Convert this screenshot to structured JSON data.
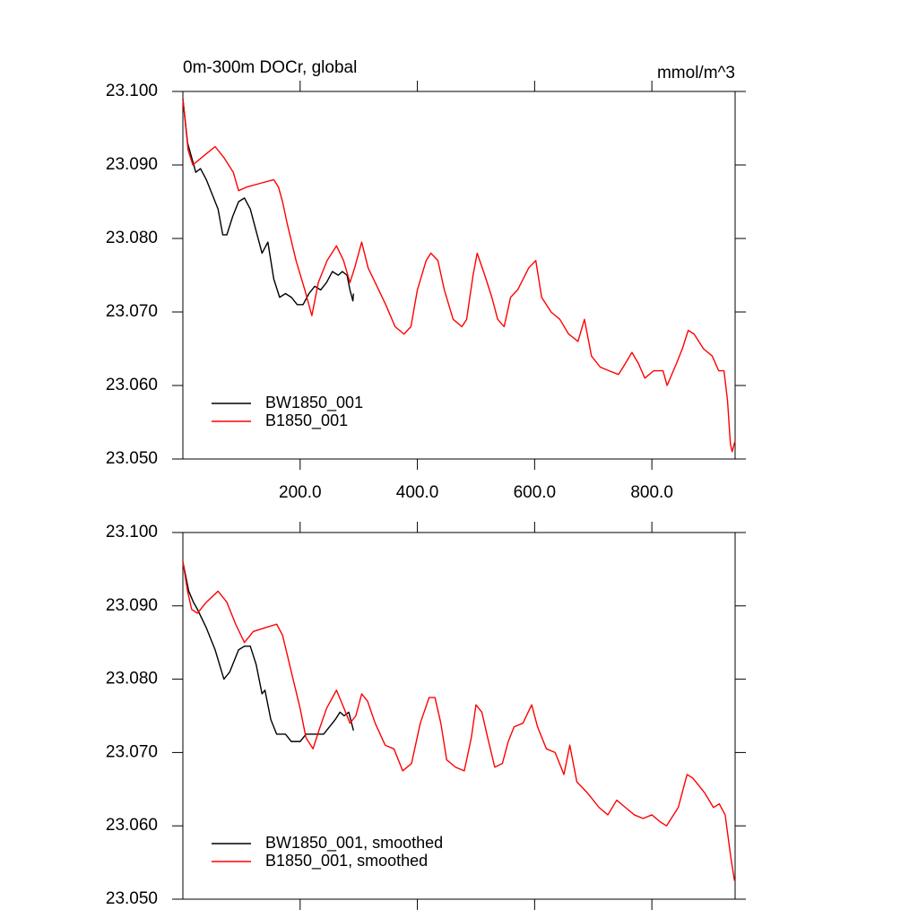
{
  "chart_data": [
    {
      "type": "line",
      "title": "0m-300m DOCr, global",
      "units": "mmol/m^3",
      "xlim": [
        0,
        942
      ],
      "ylim": [
        23.05,
        23.1
      ],
      "xticks": [
        {
          "value": 200,
          "label": "200.0"
        },
        {
          "value": 400,
          "label": "400.0"
        },
        {
          "value": 600,
          "label": "600.0"
        },
        {
          "value": 800,
          "label": "800.0"
        }
      ],
      "yticks": [
        {
          "value": 23.05,
          "label": "23.050"
        },
        {
          "value": 23.06,
          "label": "23.060"
        },
        {
          "value": 23.07,
          "label": "23.070"
        },
        {
          "value": 23.08,
          "label": "23.080"
        },
        {
          "value": 23.09,
          "label": "23.090"
        },
        {
          "value": 23.1,
          "label": "23.100"
        }
      ],
      "legend": "lower left",
      "series": [
        {
          "name": "BW1850_001",
          "color": "#000000",
          "x": [
            0,
            8,
            15,
            22,
            30,
            40,
            50,
            60,
            68,
            75,
            85,
            95,
            105,
            115,
            125,
            135,
            145,
            155,
            165,
            175,
            185,
            195,
            205,
            215,
            225,
            235,
            245,
            255,
            265,
            272,
            280,
            285,
            290,
            291
          ],
          "values": [
            23.099,
            23.093,
            23.091,
            23.089,
            23.0895,
            23.088,
            23.086,
            23.084,
            23.0805,
            23.0805,
            23.083,
            23.085,
            23.0855,
            23.084,
            23.081,
            23.078,
            23.0795,
            23.0745,
            23.072,
            23.0725,
            23.072,
            23.071,
            23.071,
            23.0725,
            23.0735,
            23.073,
            23.074,
            23.0755,
            23.075,
            23.0755,
            23.075,
            23.073,
            23.0715,
            23.0725
          ]
        },
        {
          "name": "B1850_001",
          "color": "#ff0000",
          "x": [
            0,
            9,
            17,
            32,
            55,
            70,
            86,
            95,
            109,
            132,
            155,
            163,
            170,
            178,
            193,
            208,
            220,
            231,
            246,
            262,
            274,
            285,
            293,
            305,
            316,
            328,
            346,
            362,
            377,
            389,
            400,
            415,
            423,
            435,
            446,
            461,
            476,
            484,
            495,
            502,
            515,
            527,
            537,
            548,
            559,
            571,
            590,
            602,
            612,
            628,
            643,
            658,
            674,
            685,
            697,
            712,
            727,
            743,
            751,
            766,
            777,
            788,
            803,
            819,
            826,
            842,
            852,
            862,
            872,
            888,
            903,
            914,
            923,
            929,
            934,
            937,
            942
          ],
          "values": [
            23.099,
            23.092,
            23.09,
            23.091,
            23.0925,
            23.091,
            23.089,
            23.0865,
            23.087,
            23.0875,
            23.088,
            23.087,
            23.085,
            23.082,
            23.077,
            23.073,
            23.0695,
            23.074,
            23.077,
            23.079,
            23.077,
            23.074,
            23.076,
            23.0795,
            23.076,
            23.074,
            23.071,
            23.068,
            23.067,
            23.068,
            23.073,
            23.077,
            23.078,
            23.077,
            23.073,
            23.069,
            23.068,
            23.069,
            23.075,
            23.078,
            23.075,
            23.072,
            23.069,
            23.068,
            23.072,
            23.073,
            23.076,
            23.077,
            23.072,
            23.07,
            23.069,
            23.067,
            23.066,
            23.069,
            23.064,
            23.0625,
            23.062,
            23.0615,
            23.0625,
            23.0645,
            23.063,
            23.061,
            23.062,
            23.062,
            23.06,
            23.063,
            23.065,
            23.0675,
            23.067,
            23.065,
            23.064,
            23.062,
            23.062,
            23.058,
            23.052,
            23.051,
            23.0525
          ]
        }
      ]
    },
    {
      "type": "line",
      "xlim": [
        0,
        942
      ],
      "ylim": [
        23.05,
        23.1
      ],
      "xticks": [
        200,
        400,
        600,
        800
      ],
      "yticks": [
        {
          "value": 23.05,
          "label": "23.050"
        },
        {
          "value": 23.06,
          "label": "23.060"
        },
        {
          "value": 23.07,
          "label": "23.070"
        },
        {
          "value": 23.08,
          "label": "23.080"
        },
        {
          "value": 23.09,
          "label": "23.090"
        },
        {
          "value": 23.1,
          "label": "23.100"
        }
      ],
      "legend": "lower left",
      "series": [
        {
          "name": "BW1850_001, smoothed",
          "color": "#000000",
          "x": [
            0,
            10,
            18,
            25,
            40,
            55,
            70,
            80,
            95,
            105,
            115,
            125,
            135,
            140,
            150,
            160,
            175,
            185,
            200,
            210,
            225,
            240,
            250,
            260,
            268,
            275,
            283,
            291
          ],
          "values": [
            23.096,
            23.092,
            23.0905,
            23.0895,
            23.087,
            23.084,
            23.08,
            23.081,
            23.084,
            23.0845,
            23.0845,
            23.082,
            23.078,
            23.0785,
            23.0745,
            23.0725,
            23.0725,
            23.0715,
            23.0715,
            23.0725,
            23.0725,
            23.0725,
            23.0735,
            23.0745,
            23.0755,
            23.075,
            23.0755,
            23.073
          ]
        },
        {
          "name": "B1850_001, smoothed",
          "color": "#ff0000",
          "x": [
            0,
            8,
            15,
            25,
            40,
            60,
            75,
            90,
            105,
            120,
            140,
            160,
            170,
            185,
            200,
            210,
            222,
            232,
            245,
            262,
            275,
            285,
            295,
            305,
            315,
            328,
            345,
            360,
            375,
            390,
            405,
            420,
            430,
            440,
            450,
            465,
            480,
            492,
            500,
            510,
            520,
            532,
            545,
            555,
            565,
            580,
            595,
            605,
            620,
            635,
            650,
            660,
            672,
            690,
            710,
            725,
            740,
            755,
            770,
            785,
            800,
            815,
            825,
            845,
            860,
            870,
            880,
            890,
            905,
            915,
            925,
            935,
            941
          ],
          "values": [
            23.096,
            23.092,
            23.0895,
            23.089,
            23.0905,
            23.092,
            23.0905,
            23.0875,
            23.085,
            23.0865,
            23.087,
            23.0875,
            23.086,
            23.081,
            23.076,
            23.072,
            23.0705,
            23.073,
            23.076,
            23.0785,
            23.076,
            23.074,
            23.075,
            23.078,
            23.077,
            23.074,
            23.071,
            23.0705,
            23.0675,
            23.0685,
            23.074,
            23.0775,
            23.0775,
            23.074,
            23.069,
            23.068,
            23.0675,
            23.072,
            23.0765,
            23.0755,
            23.072,
            23.068,
            23.0685,
            23.0715,
            23.0735,
            23.074,
            23.0765,
            23.0735,
            23.0705,
            23.07,
            23.067,
            23.071,
            23.066,
            23.0645,
            23.0625,
            23.0615,
            23.0635,
            23.0625,
            23.0615,
            23.061,
            23.0615,
            23.0605,
            23.06,
            23.0625,
            23.067,
            23.0665,
            23.0655,
            23.0645,
            23.0625,
            23.063,
            23.0615,
            23.0555,
            23.0525
          ]
        }
      ]
    }
  ]
}
